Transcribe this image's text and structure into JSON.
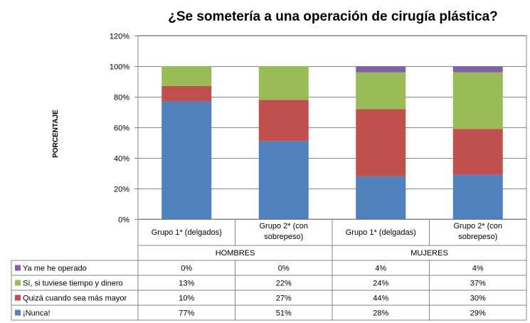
{
  "chart_data": {
    "type": "bar",
    "stacked": true,
    "title": "¿Se sometería a una operación de cirugía plástica?",
    "ylabel": "PORCENTAJE",
    "ylim": [
      0,
      1.2
    ],
    "yticks": [
      "0%",
      "20%",
      "40%",
      "60%",
      "80%",
      "100%",
      "120%"
    ],
    "grid": true,
    "legend_position": "bottom (data table)",
    "groups": [
      {
        "label": "HOMBRES",
        "span": 2
      },
      {
        "label": "MUJERES",
        "span": 2
      }
    ],
    "categories": [
      [
        "Grupo 1* (delgados)"
      ],
      [
        "Grupo 2* (con",
        "sobrepeso)"
      ],
      [
        "Grupo 1* (delgadas)"
      ],
      [
        "Grupo 2* (con",
        "sobrepeso)"
      ]
    ],
    "series": [
      {
        "name": "¡Nunca!",
        "color": "#4f81bd",
        "values": [
          0.77,
          0.51,
          0.28,
          0.29
        ],
        "labels": [
          "77%",
          "51%",
          "28%",
          "29%"
        ]
      },
      {
        "name": "Quizá cuando sea más mayor",
        "color": "#c0504d",
        "values": [
          0.1,
          0.27,
          0.44,
          0.3
        ],
        "labels": [
          "10%",
          "27%",
          "44%",
          "30%"
        ]
      },
      {
        "name": "Sí, si tuviese tiempo y dinero",
        "color": "#9bbb59",
        "values": [
          0.13,
          0.22,
          0.24,
          0.37
        ],
        "labels": [
          "13%",
          "22%",
          "24%",
          "37%"
        ]
      },
      {
        "name": "Ya me he operado",
        "color": "#8064a2",
        "values": [
          0.0,
          0.0,
          0.04,
          0.04
        ],
        "labels": [
          "0%",
          "0%",
          "4%",
          "4%"
        ]
      }
    ]
  }
}
